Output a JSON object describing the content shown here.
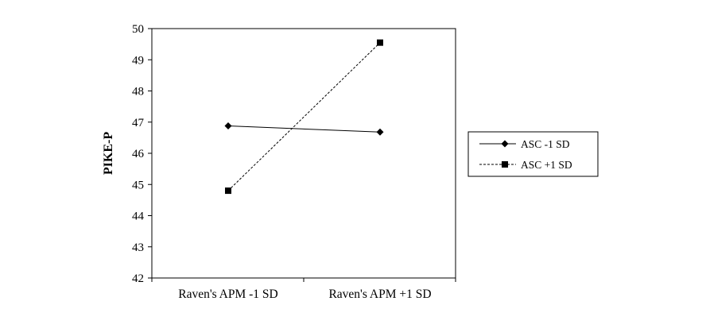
{
  "chart_data": {
    "type": "line",
    "categories": [
      "Raven's APM -1 SD",
      "Raven's APM +1 SD"
    ],
    "series": [
      {
        "name": "ASC -1 SD",
        "values": [
          46.88,
          46.68
        ],
        "marker": "diamond",
        "line_style": "solid"
      },
      {
        "name": "ASC +1 SD",
        "values": [
          44.8,
          49.55
        ],
        "marker": "square",
        "line_style": "dashed"
      }
    ],
    "title": "",
    "xlabel": "",
    "ylabel": "PIKE-P",
    "ylim": [
      42,
      50
    ],
    "yticks": [
      42,
      43,
      44,
      45,
      46,
      47,
      48,
      49,
      50
    ],
    "grid": false,
    "legend_position": "right",
    "colors": {
      "line": "#000000",
      "background": "#ffffff"
    }
  }
}
